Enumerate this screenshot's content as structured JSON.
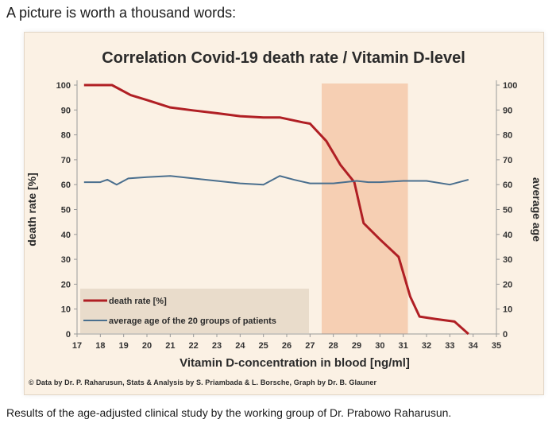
{
  "page": {
    "heading": "A picture is worth a thousand words:",
    "credit": "© Data by Dr. P. Raharusun, Stats & Analysis by S. Priambada & L. Borsche, Graph by Dr. B. Glauner",
    "caption": "Results of the age-adjusted clinical study by the working group of Dr. Prabowo Raharusun."
  },
  "colors": {
    "death_rate": "#b01f24",
    "average_age": "#4a6f8e",
    "highlight_band": "#f6cfb3",
    "legend_box": "#e9dccb",
    "panel": "#fbf1e4"
  },
  "chart_data": {
    "type": "line",
    "title": "Correlation Covid-19 death rate / Vitamin D-level",
    "xlabel": "Vitamin D-concentration in blood [ng/ml]",
    "ylabel": "death rate [%]",
    "y2label": "average age",
    "xlim": [
      17,
      35
    ],
    "ylim": [
      0,
      100
    ],
    "y2lim": [
      0,
      100
    ],
    "xticks": [
      "17",
      "18",
      "19",
      "20",
      "21",
      "22",
      "23",
      "24",
      "25",
      "26",
      "27",
      "28",
      "29",
      "30",
      "31",
      "32",
      "33",
      "34",
      "35"
    ],
    "yticks": [
      "0",
      "10",
      "20",
      "30",
      "40",
      "50",
      "60",
      "70",
      "80",
      "90",
      "100"
    ],
    "highlight_band": [
      27.5,
      31.2
    ],
    "grid": false,
    "legend_position": "bottom-left",
    "series": [
      {
        "name": "death rate [%]",
        "axis": "left",
        "x": [
          17.3,
          18.5,
          19.3,
          20,
          21,
          22,
          23,
          24,
          25,
          25.7,
          26.7,
          27,
          27.7,
          28.3,
          28.9,
          29.3,
          30,
          30.8,
          31.3,
          31.7,
          32.4,
          33.2,
          33.8
        ],
        "y": [
          100,
          100,
          96,
          94,
          91,
          89.8,
          88.7,
          87.5,
          87,
          87,
          85,
          84.5,
          77.5,
          68,
          61,
          44.5,
          38,
          31,
          15,
          7,
          6,
          5,
          0
        ]
      },
      {
        "name": "average age of the 20 groups of patients",
        "axis": "right",
        "x": [
          17.3,
          18,
          18.3,
          18.7,
          19.2,
          20,
          21,
          22,
          23,
          24,
          25,
          25.7,
          26.3,
          27,
          28,
          29,
          29.5,
          30,
          31,
          32,
          33,
          33.8
        ],
        "y": [
          61,
          61,
          62,
          60,
          62.5,
          63,
          63.5,
          62.5,
          61.5,
          60.5,
          60,
          63.5,
          62,
          60.5,
          60.5,
          61.5,
          61,
          61,
          61.5,
          61.5,
          60,
          62
        ]
      }
    ]
  }
}
